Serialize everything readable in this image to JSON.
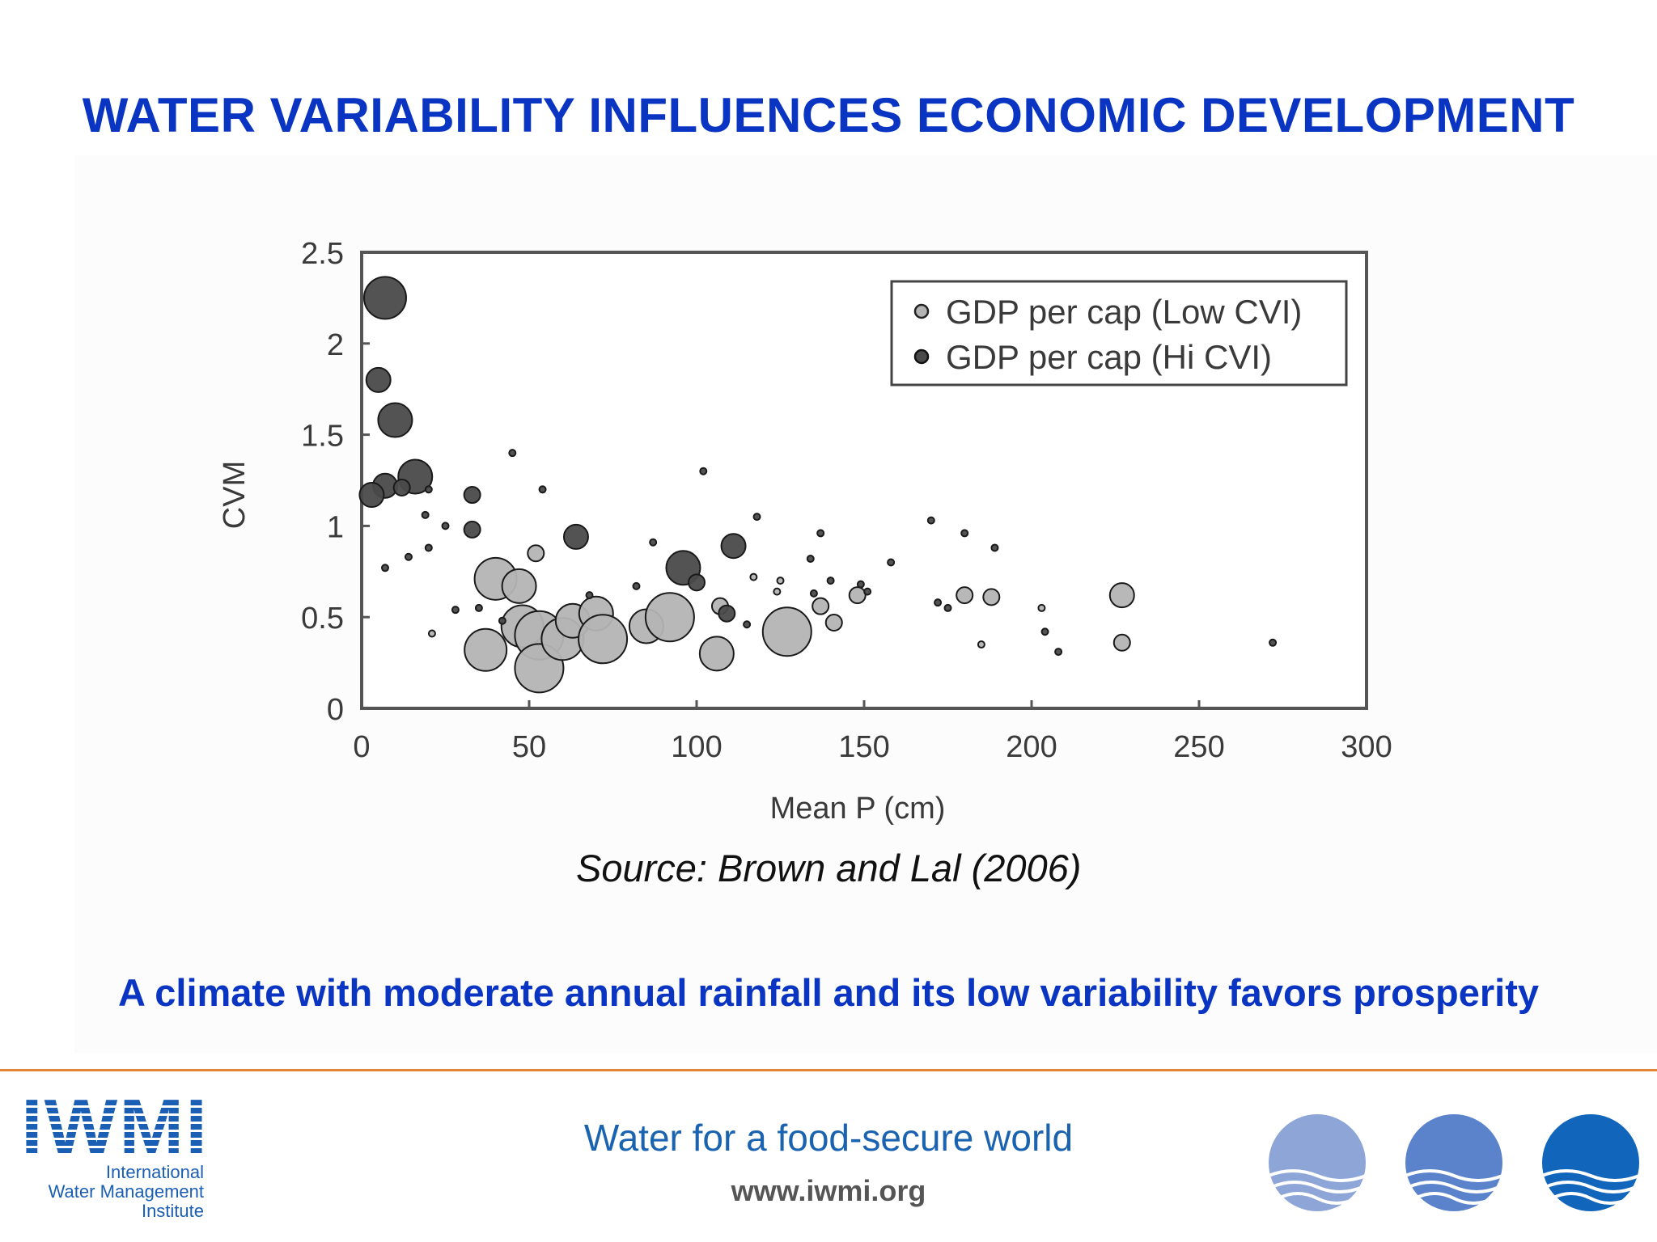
{
  "slide": {
    "title": "WATER VARIABILITY INFLUENCES ECONOMIC DEVELOPMENT",
    "source": "Source: Brown and Lal (2006)",
    "takeaway": "A climate with moderate annual rainfall and its low variability favors prosperity"
  },
  "footer": {
    "logo_text": "IWMI",
    "logo_subtitle": [
      "International",
      "Water Management",
      "Institute"
    ],
    "tagline": "Water for a food-secure world",
    "website": "www.iwmi.org",
    "accent_color": "#e2833a",
    "decor_icons": [
      "water-circle-icon-light",
      "water-circle-icon-medium",
      "water-circle-icon-dark"
    ],
    "decor_colors": [
      "#8ea5d8",
      "#5b83cc",
      "#1166bb"
    ]
  },
  "chart_data": {
    "type": "scatter",
    "xlabel": "Mean P (cm)",
    "ylabel": "CVM",
    "xlim": [
      0,
      300
    ],
    "ylim": [
      0,
      2.5
    ],
    "xticks": [
      0,
      50,
      100,
      150,
      200,
      250,
      300
    ],
    "yticks": [
      0,
      0.5,
      1,
      1.5,
      2,
      2.5
    ],
    "ytick_labels": [
      "0",
      "0.5",
      "1",
      "1.5",
      "2",
      "2.5"
    ],
    "legend_position": "top-right",
    "grid": false,
    "note": "Marker size varies per point.",
    "series": [
      {
        "name": "GDP per cap (Low CVI)",
        "color": "#b4b4b4",
        "points": [
          {
            "x": 40,
            "y": 0.71,
            "s": 5
          },
          {
            "x": 47,
            "y": 0.67,
            "s": 4
          },
          {
            "x": 48,
            "y": 0.45,
            "s": 5
          },
          {
            "x": 53,
            "y": 0.4,
            "s": 6
          },
          {
            "x": 53,
            "y": 0.22,
            "s": 6
          },
          {
            "x": 37,
            "y": 0.32,
            "s": 5
          },
          {
            "x": 60,
            "y": 0.38,
            "s": 5
          },
          {
            "x": 63,
            "y": 0.48,
            "s": 4
          },
          {
            "x": 70,
            "y": 0.52,
            "s": 4
          },
          {
            "x": 72,
            "y": 0.38,
            "s": 6
          },
          {
            "x": 85,
            "y": 0.45,
            "s": 4
          },
          {
            "x": 92,
            "y": 0.5,
            "s": 6
          },
          {
            "x": 106,
            "y": 0.3,
            "s": 4
          },
          {
            "x": 107,
            "y": 0.56,
            "s": 2
          },
          {
            "x": 127,
            "y": 0.42,
            "s": 6
          },
          {
            "x": 148,
            "y": 0.62,
            "s": 2
          },
          {
            "x": 137,
            "y": 0.56,
            "s": 2
          },
          {
            "x": 141,
            "y": 0.47,
            "s": 2
          },
          {
            "x": 52,
            "y": 0.85,
            "s": 2
          },
          {
            "x": 21,
            "y": 0.41,
            "s": 1
          },
          {
            "x": 117,
            "y": 0.72,
            "s": 1
          },
          {
            "x": 124,
            "y": 0.64,
            "s": 1
          },
          {
            "x": 180,
            "y": 0.62,
            "s": 2
          },
          {
            "x": 188,
            "y": 0.61,
            "s": 2
          },
          {
            "x": 185,
            "y": 0.35,
            "s": 1
          },
          {
            "x": 203,
            "y": 0.55,
            "s": 1
          },
          {
            "x": 227,
            "y": 0.62,
            "s": 3
          },
          {
            "x": 227,
            "y": 0.36,
            "s": 2
          },
          {
            "x": 125,
            "y": 0.7,
            "s": 1
          }
        ]
      },
      {
        "name": "GDP per cap (Hi CVI)",
        "color": "#4a4a4a",
        "points": [
          {
            "x": 7,
            "y": 2.25,
            "s": 5
          },
          {
            "x": 5,
            "y": 1.8,
            "s": 3
          },
          {
            "x": 10,
            "y": 1.58,
            "s": 4
          },
          {
            "x": 16,
            "y": 1.27,
            "s": 4
          },
          {
            "x": 7,
            "y": 1.22,
            "s": 3
          },
          {
            "x": 3,
            "y": 1.17,
            "s": 3
          },
          {
            "x": 12,
            "y": 1.21,
            "s": 2
          },
          {
            "x": 20,
            "y": 1.2,
            "s": 1
          },
          {
            "x": 19,
            "y": 1.06,
            "s": 1
          },
          {
            "x": 25,
            "y": 1.0,
            "s": 1
          },
          {
            "x": 33,
            "y": 1.17,
            "s": 2
          },
          {
            "x": 33,
            "y": 0.98,
            "s": 2
          },
          {
            "x": 20,
            "y": 0.88,
            "s": 1
          },
          {
            "x": 14,
            "y": 0.83,
            "s": 1
          },
          {
            "x": 7,
            "y": 0.77,
            "s": 1
          },
          {
            "x": 28,
            "y": 0.54,
            "s": 1
          },
          {
            "x": 45,
            "y": 1.4,
            "s": 1
          },
          {
            "x": 54,
            "y": 1.2,
            "s": 1
          },
          {
            "x": 64,
            "y": 0.94,
            "s": 3
          },
          {
            "x": 96,
            "y": 0.77,
            "s": 4
          },
          {
            "x": 100,
            "y": 0.69,
            "s": 2
          },
          {
            "x": 111,
            "y": 0.89,
            "s": 3
          },
          {
            "x": 109,
            "y": 0.52,
            "s": 2
          },
          {
            "x": 115,
            "y": 0.46,
            "s": 1
          },
          {
            "x": 68,
            "y": 0.62,
            "s": 1
          },
          {
            "x": 82,
            "y": 0.67,
            "s": 1
          },
          {
            "x": 87,
            "y": 0.91,
            "s": 1
          },
          {
            "x": 135,
            "y": 0.63,
            "s": 1
          },
          {
            "x": 149,
            "y": 0.68,
            "s": 1
          },
          {
            "x": 151,
            "y": 0.64,
            "s": 1
          },
          {
            "x": 172,
            "y": 0.58,
            "s": 1
          },
          {
            "x": 175,
            "y": 0.55,
            "s": 1
          },
          {
            "x": 204,
            "y": 0.42,
            "s": 1
          },
          {
            "x": 208,
            "y": 0.31,
            "s": 1
          },
          {
            "x": 272,
            "y": 0.36,
            "s": 1
          },
          {
            "x": 35,
            "y": 0.55,
            "s": 1
          },
          {
            "x": 102,
            "y": 1.3,
            "s": 1
          },
          {
            "x": 118,
            "y": 1.05,
            "s": 1
          },
          {
            "x": 170,
            "y": 1.03,
            "s": 1
          },
          {
            "x": 180,
            "y": 0.96,
            "s": 1
          },
          {
            "x": 189,
            "y": 0.88,
            "s": 1
          },
          {
            "x": 158,
            "y": 0.8,
            "s": 1
          },
          {
            "x": 137,
            "y": 0.96,
            "s": 1
          },
          {
            "x": 134,
            "y": 0.82,
            "s": 1
          },
          {
            "x": 42,
            "y": 0.48,
            "s": 1
          },
          {
            "x": 140,
            "y": 0.7,
            "s": 1
          }
        ]
      }
    ]
  }
}
